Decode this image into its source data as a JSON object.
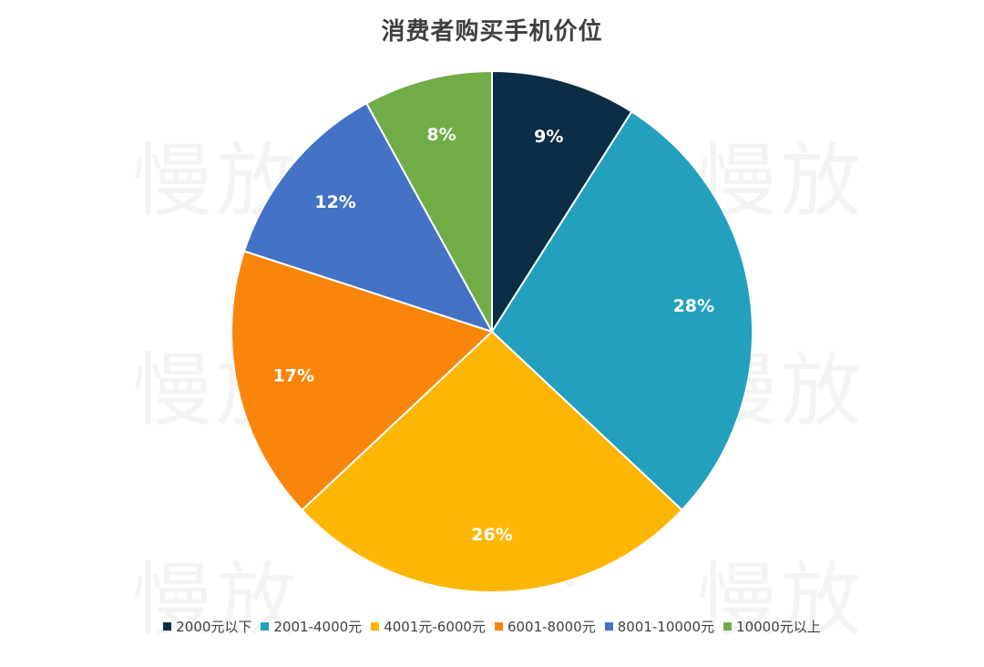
{
  "title": "消费者购买手机价位",
  "watermark_text": "慢放",
  "chart_data": {
    "type": "pie",
    "title": "消费者购买手机价位",
    "start_angle_deg": 0,
    "direction": "clockwise",
    "legend_position": "bottom",
    "slices": [
      {
        "label": "2000元以下",
        "value": 9,
        "display": "9%",
        "color": "#0B2D46"
      },
      {
        "label": "2001-4000元",
        "value": 28,
        "display": "28%",
        "color": "#23A0BE"
      },
      {
        "label": "4001元-6000元",
        "value": 26,
        "display": "26%",
        "color": "#FDB604"
      },
      {
        "label": "6001-8000元",
        "value": 17,
        "display": "17%",
        "color": "#F9850A"
      },
      {
        "label": "8001-10000元",
        "value": 12,
        "display": "12%",
        "color": "#4472C4"
      },
      {
        "label": "10000元以上",
        "value": 8,
        "display": "8%",
        "color": "#70AD47"
      }
    ]
  }
}
